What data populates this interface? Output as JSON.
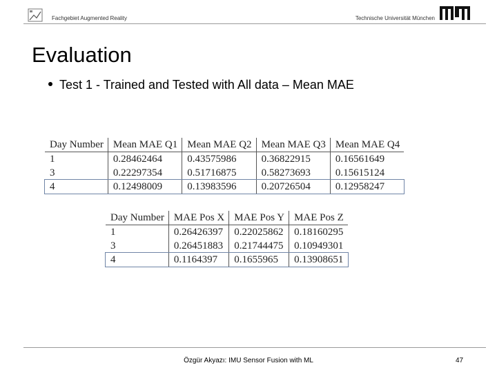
{
  "header": {
    "department": "Fachgebiet Augmented Reality",
    "university": "Technische Universität München"
  },
  "title": "Evaluation",
  "bullet": "Test 1 - Trained and Tested with All data – Mean MAE",
  "table1": {
    "columns": [
      "Day Number",
      "Mean MAE Q1",
      "Mean MAE Q2",
      "Mean MAE Q3",
      "Mean MAE Q4"
    ],
    "rows": [
      [
        "1",
        "0.28462464",
        "0.43575986",
        "0.36822915",
        "0.16561649"
      ],
      [
        "3",
        "0.22297354",
        "0.51716875",
        "0.58273693",
        "0.15615124"
      ],
      [
        "4",
        "0.12498009",
        "0.13983596",
        "0.20726504",
        "0.12958247"
      ]
    ]
  },
  "table2": {
    "columns": [
      "Day Number",
      "MAE Pos X",
      "MAE Pos Y",
      "MAE Pos Z"
    ],
    "rows": [
      [
        "1",
        "0.26426397",
        "0.22025862",
        "0.18160295"
      ],
      [
        "3",
        "0.26451883",
        "0.21744475",
        "0.10949301"
      ],
      [
        "4",
        "0.1164397",
        "0.1655965",
        "0.13908651"
      ]
    ]
  },
  "footer": {
    "text": "Özgür Akyazı: IMU Sensor Fusion with ML",
    "page": "47"
  },
  "colors": {
    "tum_blue": "#0a0a0a",
    "highlight_border": "#6f84a6"
  }
}
